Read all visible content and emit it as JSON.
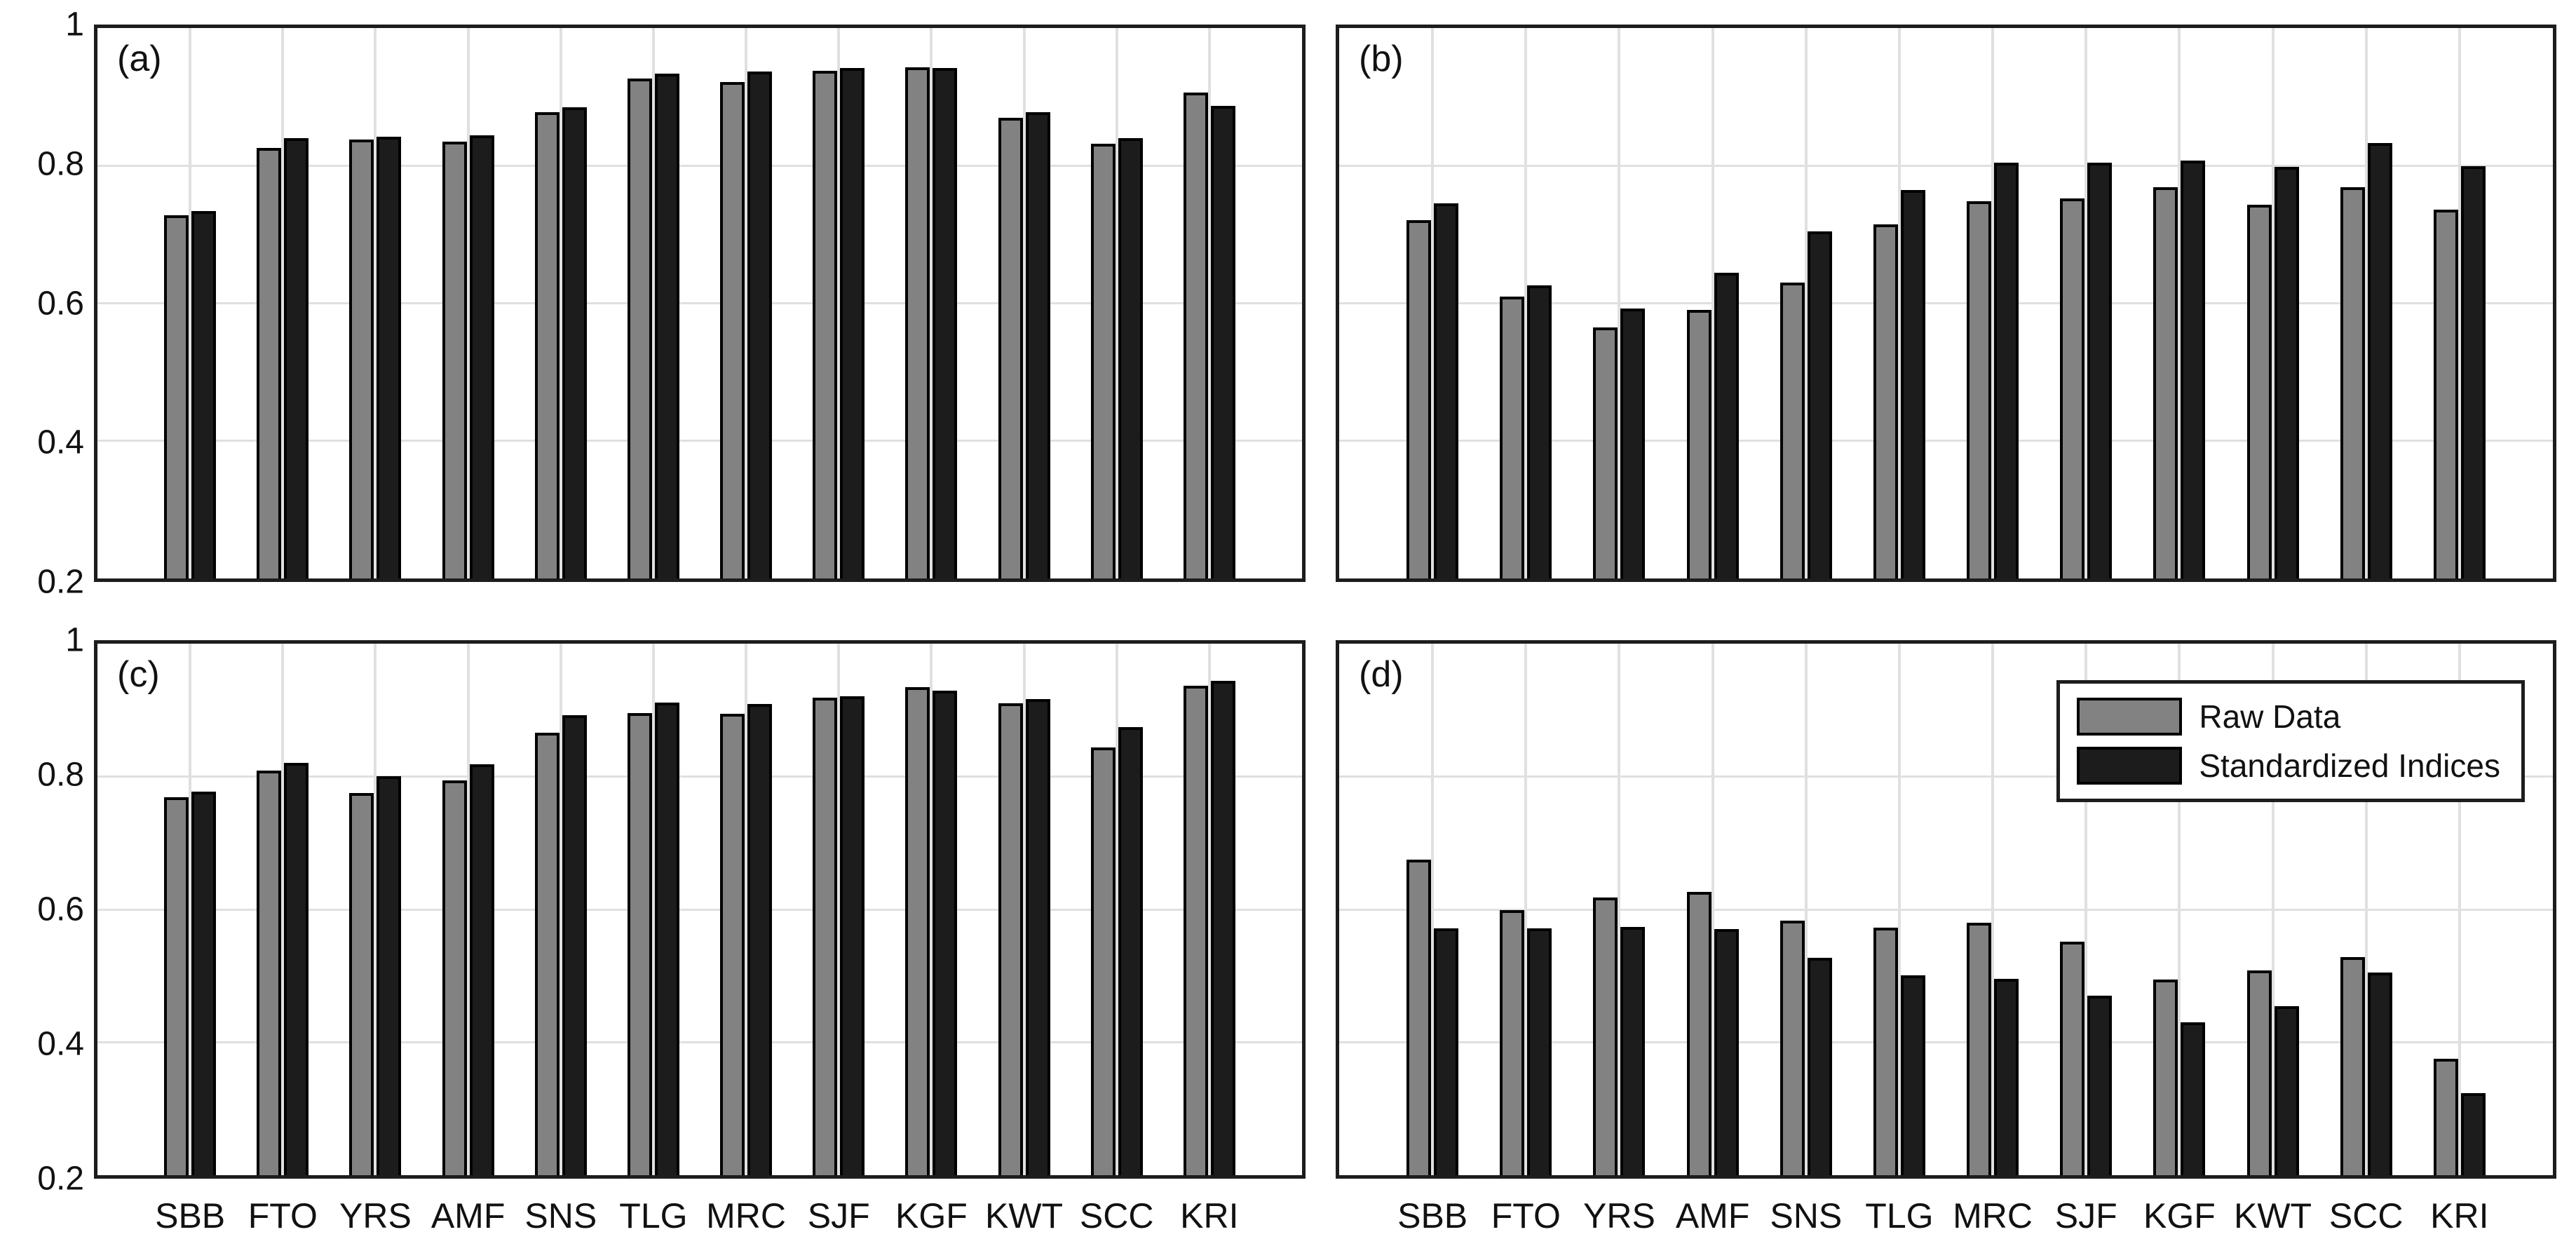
{
  "figure": {
    "background": "#ffffff"
  },
  "colors": {
    "raw_bar": "#828282",
    "standardized_bar": "#1c1c1c",
    "bar_edge": "#000000",
    "gridline": "#e0e0e0",
    "frame": "#1d1d1d",
    "text": "#111111"
  },
  "chart_data": [
    {
      "type": "bar",
      "panel_label": "(a)",
      "categories": [
        "SBB",
        "FTO",
        "YRS",
        "AMF",
        "SNS",
        "TLG",
        "MRC",
        "SJF",
        "KGF",
        "KWT",
        "SCC",
        "KRI"
      ],
      "series": [
        {
          "name": "Raw Data",
          "color": "#828282",
          "values": [
            0.728,
            0.826,
            0.838,
            0.835,
            0.878,
            0.927,
            0.922,
            0.938,
            0.943,
            0.87,
            0.832,
            0.906
          ]
        },
        {
          "name": "Standardized Indices",
          "color": "#1c1c1c",
          "values": [
            0.734,
            0.84,
            0.842,
            0.844,
            0.885,
            0.934,
            0.937,
            0.942,
            0.942,
            0.878,
            0.84,
            0.887
          ]
        }
      ],
      "ylim": [
        0.2,
        1
      ],
      "yticks": [
        1,
        0.8,
        0.6,
        0.4,
        0.2
      ],
      "ytick_labels": [
        "1",
        "0.8",
        "0.6",
        "0.4",
        "0.2"
      ],
      "grid": true,
      "show_y_tick_labels": true,
      "show_x_tick_labels": false,
      "legend_visible": false
    },
    {
      "type": "bar",
      "panel_label": "(b)",
      "categories": [
        "SBB",
        "FTO",
        "YRS",
        "AMF",
        "SNS",
        "TLG",
        "MRC",
        "SJF",
        "KGF",
        "KWT",
        "SCC",
        "KRI"
      ],
      "series": [
        {
          "name": "Raw Data",
          "color": "#828282",
          "values": [
            0.721,
            0.61,
            0.565,
            0.59,
            0.63,
            0.715,
            0.748,
            0.752,
            0.769,
            0.743,
            0.769,
            0.736
          ]
        },
        {
          "name": "Standardized Indices",
          "color": "#1c1c1c",
          "values": [
            0.745,
            0.626,
            0.592,
            0.644,
            0.704,
            0.765,
            0.804,
            0.804,
            0.807,
            0.798,
            0.833,
            0.799
          ]
        }
      ],
      "ylim": [
        0.2,
        1
      ],
      "yticks": [
        1,
        0.8,
        0.6,
        0.4,
        0.2
      ],
      "ytick_labels": [
        "1",
        "0.8",
        "0.6",
        "0.4",
        "0.2"
      ],
      "grid": true,
      "show_y_tick_labels": false,
      "show_x_tick_labels": false,
      "legend_visible": false
    },
    {
      "type": "bar",
      "panel_label": "(c)",
      "categories": [
        "SBB",
        "FTO",
        "YRS",
        "AMF",
        "SNS",
        "TLG",
        "MRC",
        "SJF",
        "KGF",
        "KWT",
        "SCC",
        "KRI"
      ],
      "series": [
        {
          "name": "Raw Data",
          "color": "#828282",
          "values": [
            0.769,
            0.809,
            0.775,
            0.794,
            0.866,
            0.896,
            0.895,
            0.919,
            0.935,
            0.91,
            0.844,
            0.937
          ]
        },
        {
          "name": "Standardized Indices",
          "color": "#1c1c1c",
          "values": [
            0.777,
            0.821,
            0.801,
            0.818,
            0.892,
            0.911,
            0.909,
            0.921,
            0.929,
            0.917,
            0.874,
            0.944
          ]
        }
      ],
      "ylim": [
        0.2,
        1
      ],
      "yticks": [
        1,
        0.8,
        0.6,
        0.4,
        0.2
      ],
      "ytick_labels": [
        "1",
        "0.8",
        "0.6",
        "0.4",
        "0.2"
      ],
      "grid": true,
      "show_y_tick_labels": true,
      "show_x_tick_labels": true,
      "legend_visible": false
    },
    {
      "type": "bar",
      "panel_label": "(d)",
      "categories": [
        "SBB",
        "FTO",
        "YRS",
        "AMF",
        "SNS",
        "TLG",
        "MRC",
        "SJF",
        "KGF",
        "KWT",
        "SCC",
        "KRI"
      ],
      "series": [
        {
          "name": "Raw Data",
          "color": "#828282",
          "values": [
            0.675,
            0.599,
            0.618,
            0.626,
            0.583,
            0.573,
            0.58,
            0.551,
            0.495,
            0.508,
            0.528,
            0.375
          ]
        },
        {
          "name": "Standardized Indices",
          "color": "#1c1c1c",
          "values": [
            0.571,
            0.571,
            0.574,
            0.57,
            0.527,
            0.501,
            0.496,
            0.47,
            0.43,
            0.454,
            0.505,
            0.324
          ]
        }
      ],
      "ylim": [
        0.2,
        1
      ],
      "yticks": [
        1,
        0.8,
        0.6,
        0.4,
        0.2
      ],
      "ytick_labels": [
        "1",
        "0.8",
        "0.6",
        "0.4",
        "0.2"
      ],
      "grid": true,
      "show_y_tick_labels": false,
      "show_x_tick_labels": true,
      "legend_visible": true,
      "legend_position": "northeast"
    }
  ]
}
